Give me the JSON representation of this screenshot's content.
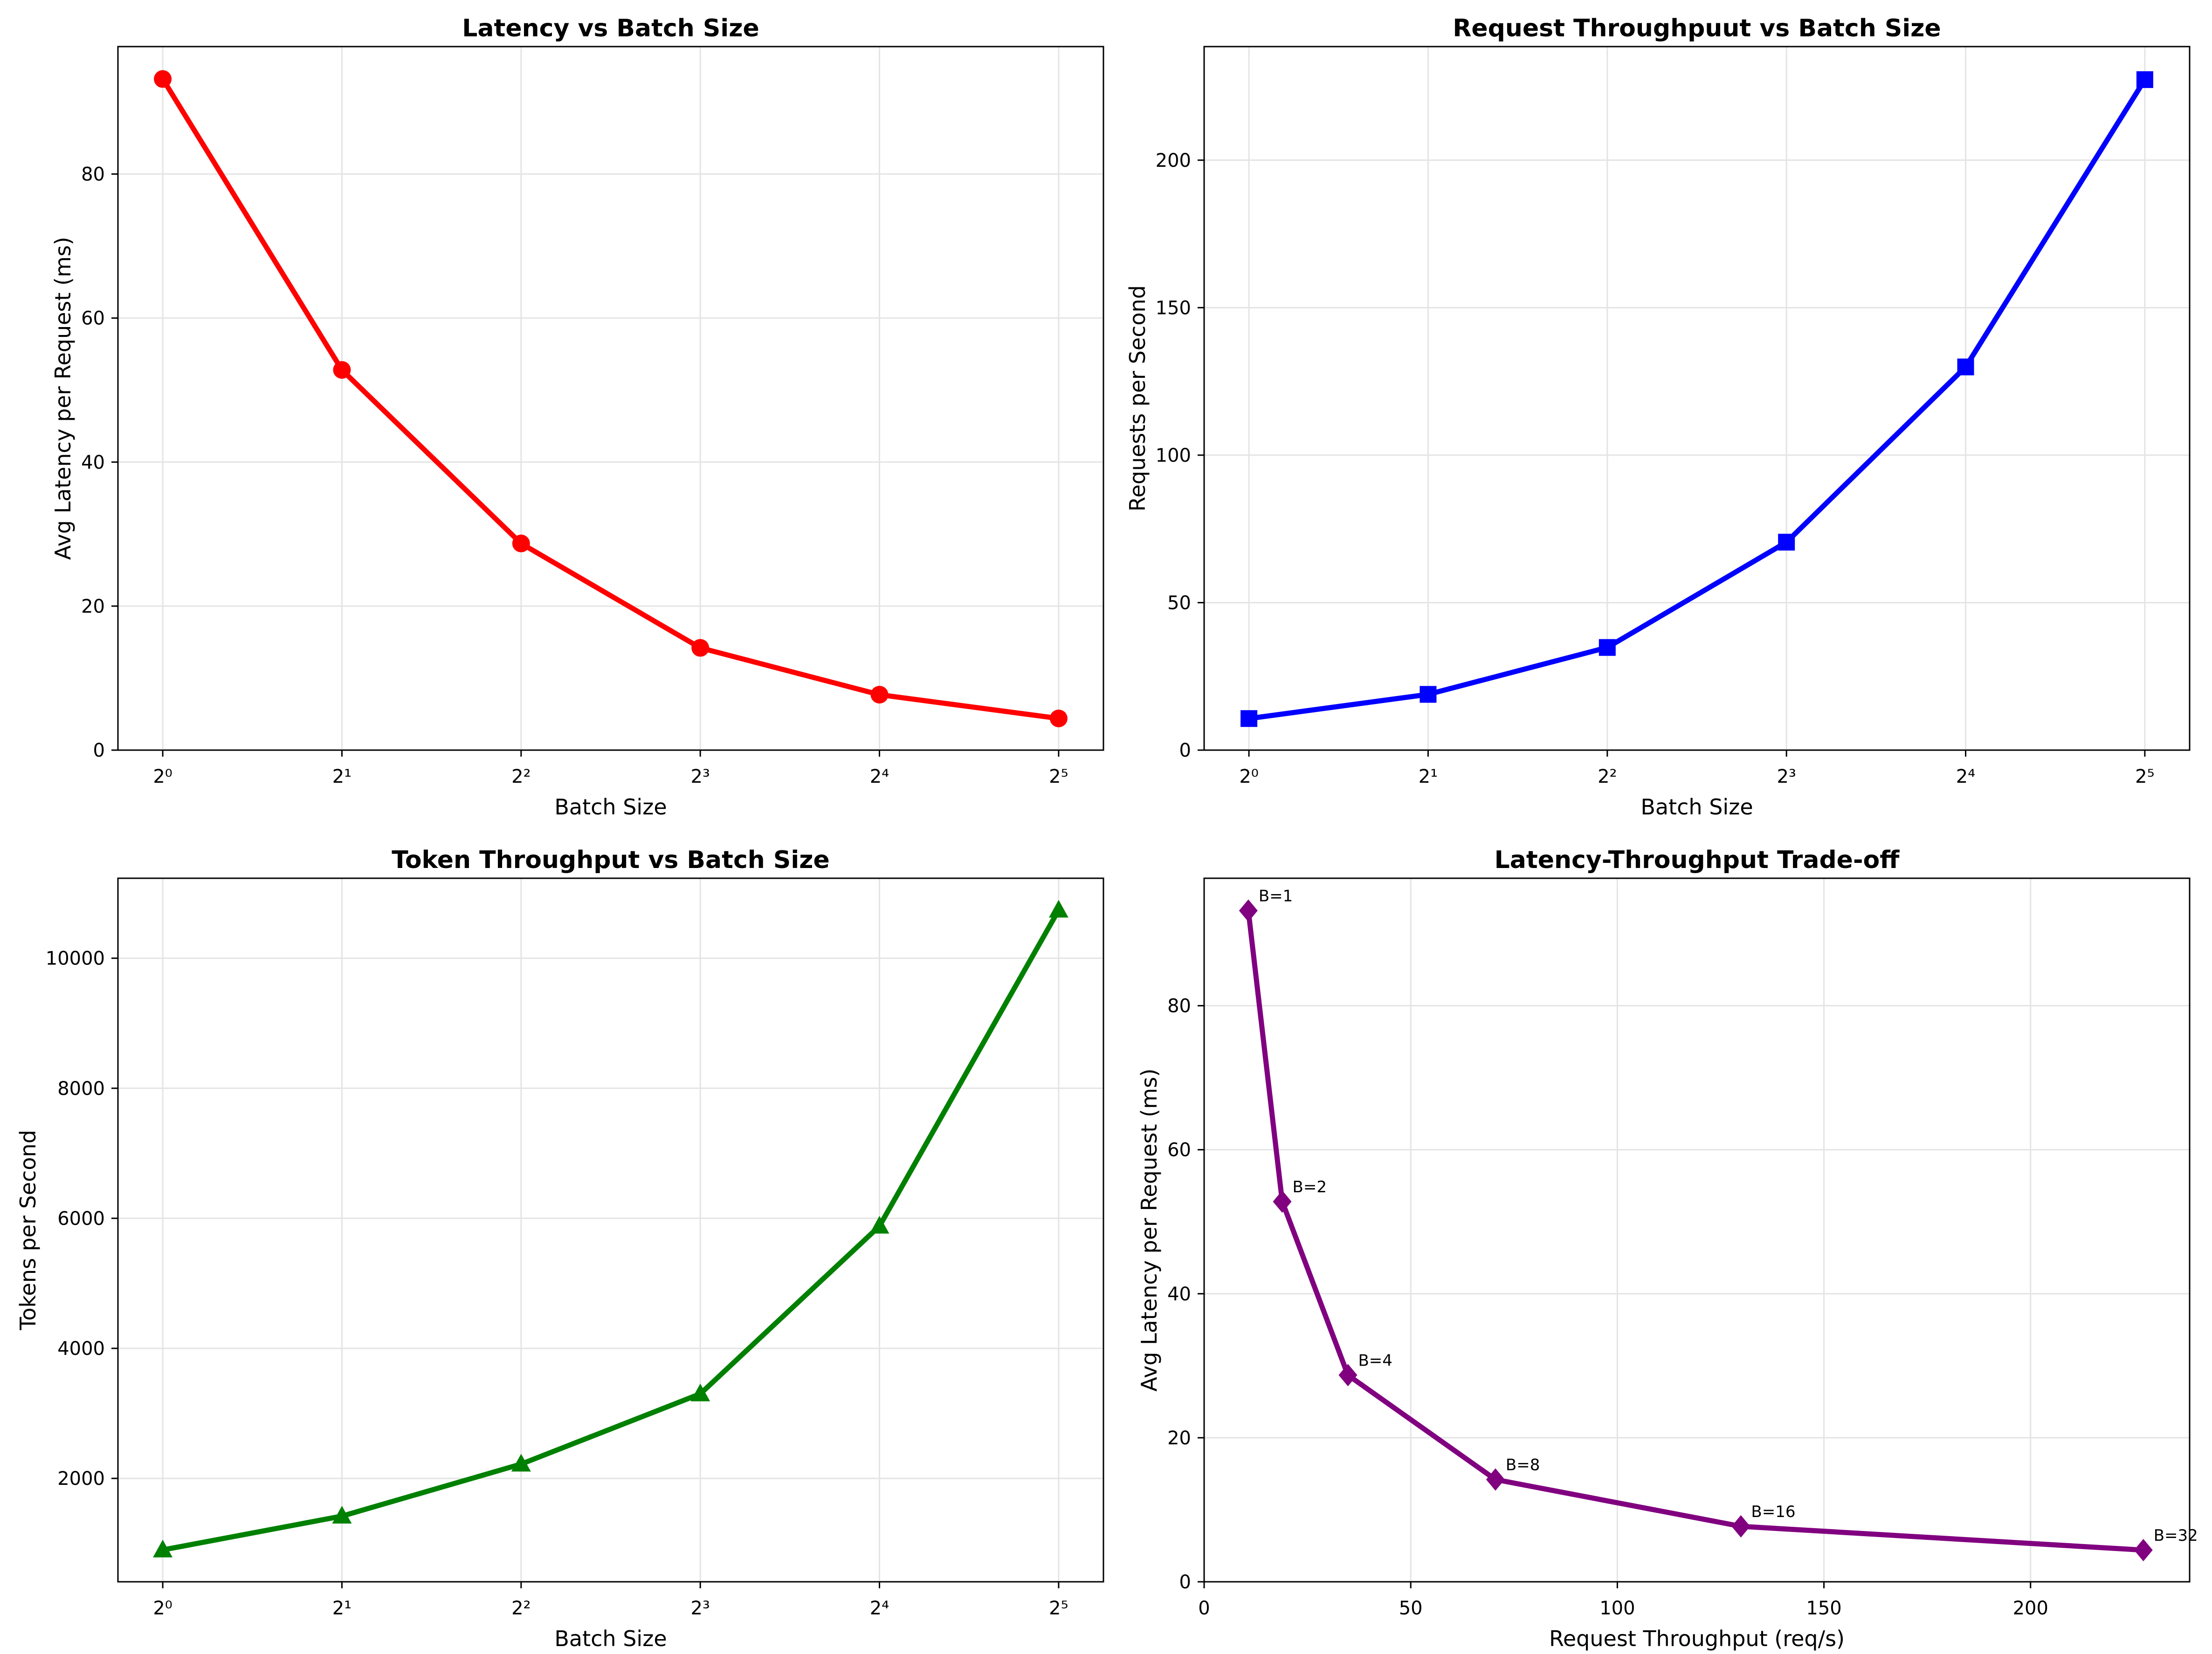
{
  "chart_data": [
    {
      "type": "line",
      "title": "Latency vs Batch Size",
      "xlabel": "Batch Size",
      "ylabel": "Avg Latency per Request (ms)",
      "x_scale": "log2",
      "x": [
        1,
        2,
        4,
        8,
        16,
        32
      ],
      "x_tick_labels": [
        "2⁰",
        "2¹",
        "2²",
        "2³",
        "2⁴",
        "2⁵"
      ],
      "y_ticks": [
        0,
        20,
        40,
        60,
        80
      ],
      "ylim": [
        0,
        97.7
      ],
      "grid": true,
      "series": [
        {
          "values": [
            93.2,
            52.8,
            28.7,
            14.2,
            7.7,
            4.4
          ],
          "color": "#ff0000",
          "marker": "circle"
        }
      ]
    },
    {
      "type": "line",
      "title": "Request Throughpuut vs Batch Size",
      "xlabel": "Batch Size",
      "ylabel": "Requests per Second",
      "x_scale": "log2",
      "x": [
        1,
        2,
        4,
        8,
        16,
        32
      ],
      "x_tick_labels": [
        "2⁰",
        "2¹",
        "2²",
        "2³",
        "2⁴",
        "2⁵"
      ],
      "y_ticks": [
        0,
        50,
        100,
        150,
        200
      ],
      "ylim": [
        0,
        238.5
      ],
      "grid": true,
      "series": [
        {
          "values": [
            10.7,
            18.9,
            34.8,
            70.5,
            129.9,
            227.3
          ],
          "color": "#0000ff",
          "marker": "square"
        }
      ]
    },
    {
      "type": "line",
      "title": "Token Throughput vs Batch Size",
      "xlabel": "Batch Size",
      "ylabel": "Tokens per Second",
      "x_scale": "log2",
      "x": [
        1,
        2,
        4,
        8,
        16,
        32
      ],
      "x_tick_labels": [
        "2⁰",
        "2¹",
        "2²",
        "2³",
        "2⁴",
        "2⁵"
      ],
      "y_ticks": [
        2000,
        4000,
        6000,
        8000,
        10000
      ],
      "ylim": [
        410,
        11230
      ],
      "grid": true,
      "series": [
        {
          "values": [
            900,
            1420,
            2220,
            3300,
            5880,
            10740
          ],
          "color": "#008000",
          "marker": "triangle"
        }
      ]
    },
    {
      "type": "line",
      "title": "Latency-Throughput Trade-off",
      "xlabel": "Request Throughput (req/s)",
      "ylabel": "Avg Latency per Request (ms)",
      "x_scale": "linear",
      "xlim": [
        0,
        238.5
      ],
      "x_ticks": [
        0,
        50,
        100,
        150,
        200
      ],
      "y_ticks": [
        0,
        20,
        40,
        60,
        80
      ],
      "ylim": [
        0,
        97.7
      ],
      "grid": true,
      "series": [
        {
          "x": [
            10.7,
            18.9,
            34.8,
            70.5,
            129.9,
            227.3
          ],
          "values": [
            93.2,
            52.8,
            28.7,
            14.2,
            7.7,
            4.4
          ],
          "point_labels": [
            "B=1",
            "B=2",
            "B=4",
            "B=8",
            "B=16",
            "B=32"
          ],
          "color": "#800080",
          "marker": "diamond"
        }
      ]
    }
  ]
}
